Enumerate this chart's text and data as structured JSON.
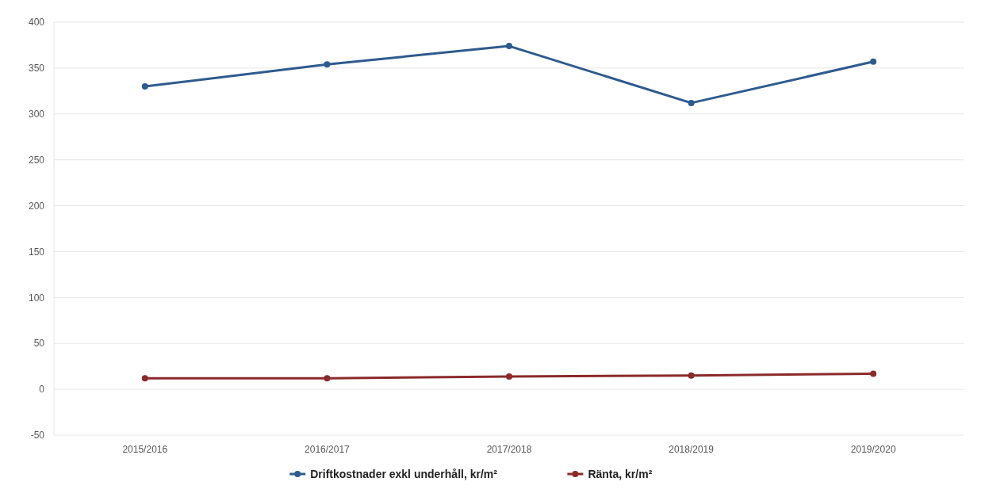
{
  "chart_data": {
    "type": "line",
    "categories": [
      "2015/2016",
      "2016/2017",
      "2017/2018",
      "2018/2019",
      "2019/2020"
    ],
    "series": [
      {
        "name": "Driftkostnader exkl underhåll, kr/m²",
        "color": "#2e5b8e",
        "values": [
          330,
          354,
          374,
          312,
          357
        ]
      },
      {
        "name": "Ränta, kr/m²",
        "color": "#8b2a2a",
        "values": [
          12,
          12,
          14,
          15,
          17
        ]
      }
    ],
    "ylim": [
      -50,
      400
    ],
    "yticks": [
      -50,
      0,
      50,
      100,
      150,
      200,
      250,
      300,
      350,
      400
    ],
    "grid": "y",
    "legend": "bottom",
    "marker": "circle",
    "line_style": "solid"
  }
}
